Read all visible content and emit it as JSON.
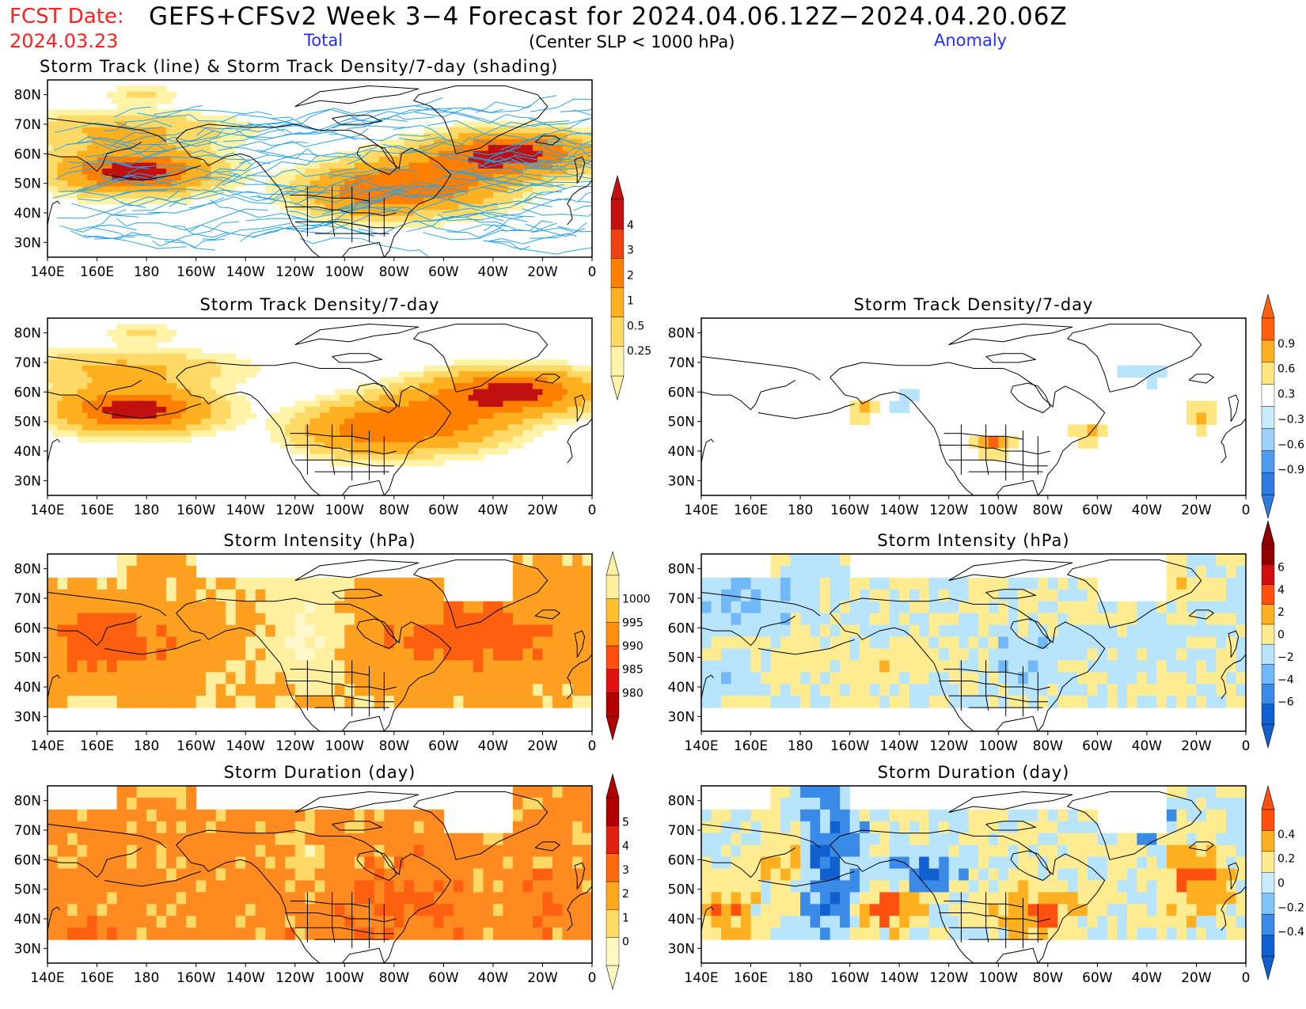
{
  "header": {
    "fcst_label": "FCST Date:",
    "fcst_date": "2024.03.23",
    "title": "GEFS+CFSv2 Week 3−4 Forecast for 2024.04.06.12Z−2024.04.20.06Z",
    "total_label": "Total",
    "anomaly_label": "Anomaly",
    "slp_label": "(Center SLP < 1000 hPa)"
  },
  "lon_ticks": [
    "140E",
    "160E",
    "180",
    "160W",
    "140W",
    "120W",
    "100W",
    "80W",
    "60W",
    "40W",
    "20W",
    "0"
  ],
  "lat_ticks": [
    "80N",
    "70N",
    "60N",
    "50N",
    "40N",
    "30N"
  ],
  "panels": [
    {
      "id": "track",
      "title": "Storm Track (line) & Storm Track Density/7-day (shading)",
      "kind": "track",
      "col": 0,
      "row": 0
    },
    {
      "id": "density-total",
      "title": "Storm Track Density/7-day",
      "kind": "density",
      "col": 0,
      "row": 1
    },
    {
      "id": "density-anom",
      "title": "Storm Track Density/7-day",
      "kind": "density_anom",
      "col": 1,
      "row": 1
    },
    {
      "id": "intensity-total",
      "title": "Storm Intensity (hPa)",
      "kind": "intensity",
      "col": 0,
      "row": 2
    },
    {
      "id": "intensity-anom",
      "title": "Storm Intensity (hPa)",
      "kind": "intensity_anom",
      "col": 1,
      "row": 2
    },
    {
      "id": "duration-total",
      "title": "Storm Duration (day)",
      "kind": "duration",
      "col": 0,
      "row": 3
    },
    {
      "id": "duration-anom",
      "title": "Storm Duration (day)",
      "kind": "duration_anom",
      "col": 1,
      "row": 3
    }
  ],
  "colorbars": [
    {
      "id": "cb-density",
      "labels": [
        "0.25",
        "0.5",
        "1",
        "2",
        "3",
        "4"
      ],
      "colors": [
        "#fff3a8",
        "#ffd966",
        "#ffb020",
        "#ff8000",
        "#ee4010",
        "#c01010"
      ]
    },
    {
      "id": "cb-density-anom",
      "labels": [
        "−0.9",
        "−0.6",
        "−0.3",
        "0.3",
        "0.6",
        "0.9"
      ],
      "colors": [
        "#2f7be0",
        "#4f9bf0",
        "#9cd2f8",
        "#c8ecfc",
        "#ffffff",
        "#ffe680",
        "#ffb020",
        "#ff6010"
      ]
    },
    {
      "id": "cb-intensity",
      "labels": [
        "980",
        "985",
        "990",
        "995",
        "1000"
      ],
      "colors": [
        "#b00000",
        "#e01010",
        "#ff5010",
        "#ff9010",
        "#ffc030",
        "#fff0a0"
      ]
    },
    {
      "id": "cb-intensity-anom",
      "labels": [
        "−6",
        "−4",
        "−2",
        "0",
        "2",
        "4",
        "6"
      ],
      "colors": [
        "#1060d0",
        "#3a8ae8",
        "#70b8f8",
        "#b8e4fc",
        "#ffec90",
        "#ffb020",
        "#ff5010",
        "#d01010",
        "#900000"
      ]
    },
    {
      "id": "cb-duration",
      "labels": [
        "0",
        "1",
        "2",
        "3",
        "4",
        "5"
      ],
      "colors": [
        "#fff7c0",
        "#ffd966",
        "#ffa820",
        "#ff6a10",
        "#e02010",
        "#b00000"
      ]
    },
    {
      "id": "cb-duration-anom",
      "labels": [
        "−0.4",
        "−0.2",
        "0",
        "0.2",
        "0.4"
      ],
      "colors": [
        "#1060d0",
        "#3a8ae8",
        "#80c4f8",
        "#c8ecfc",
        "#ffec90",
        "#ffb020",
        "#ff5010"
      ]
    }
  ],
  "colors": {
    "frame": "#000000",
    "track_line": "#29a3e8",
    "coast": "#000000"
  }
}
